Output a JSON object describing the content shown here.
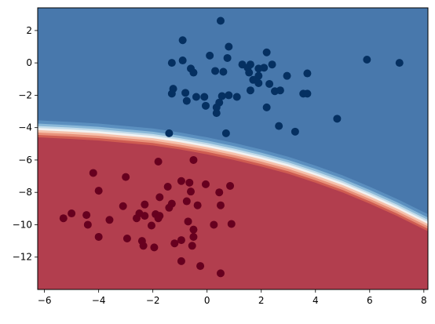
{
  "chart_data": {
    "type": "scatter",
    "title": "",
    "xlabel": "",
    "ylabel": "",
    "xlim": [
      -6.25,
      8.15
    ],
    "ylim": [
      -14.0,
      3.4
    ],
    "grid": false,
    "legend": "none",
    "x_ticks": [
      -6,
      -4,
      -2,
      0,
      2,
      4,
      6,
      8
    ],
    "y_ticks": [
      2,
      0,
      -2,
      -4,
      -6,
      -8,
      -10,
      -12
    ],
    "background_regions": [
      {
        "class": "blue",
        "color": "#4878ac"
      },
      {
        "class": "red",
        "color": "#b23e4e"
      }
    ],
    "boundary_band_colors": [
      "#5b8fbf",
      "#8ab8d8",
      "#c4dcea",
      "#f2f2f2",
      "#f6c2ad",
      "#e8917a",
      "#cf5c52"
    ],
    "boundary_curve": [
      [
        -6.25,
        -4.1
      ],
      [
        -5,
        -4.2
      ],
      [
        -4,
        -4.3
      ],
      [
        -3,
        -4.45
      ],
      [
        -2,
        -4.6
      ],
      [
        -1,
        -4.85
      ],
      [
        0,
        -5.15
      ],
      [
        1,
        -5.5
      ],
      [
        2,
        -5.9
      ],
      [
        3,
        -6.35
      ],
      [
        4,
        -6.9
      ],
      [
        5,
        -7.5
      ],
      [
        6,
        -8.2
      ],
      [
        7,
        -8.95
      ],
      [
        8.15,
        -9.9
      ]
    ],
    "series": [
      {
        "color": "#053061",
        "points": [
          [
            0.5,
            2.6
          ],
          [
            -0.9,
            1.4
          ],
          [
            0.8,
            1.0
          ],
          [
            0.1,
            0.45
          ],
          [
            0.75,
            0.3
          ],
          [
            -0.9,
            0.15
          ],
          [
            -1.3,
            0.0
          ],
          [
            1.3,
            -0.1
          ],
          [
            1.6,
            -0.1
          ],
          [
            2.4,
            -0.1
          ],
          [
            2.2,
            0.65
          ],
          [
            1.5,
            -0.3
          ],
          [
            2.1,
            -0.3
          ],
          [
            1.9,
            -0.35
          ],
          [
            -0.6,
            -0.35
          ],
          [
            0.3,
            -0.5
          ],
          [
            0.6,
            -0.55
          ],
          [
            1.55,
            -0.6
          ],
          [
            1.9,
            -0.8
          ],
          [
            -0.5,
            -0.6
          ],
          [
            2.95,
            -0.8
          ],
          [
            3.7,
            -0.65
          ],
          [
            1.7,
            -1.05
          ],
          [
            1.9,
            -1.25
          ],
          [
            2.3,
            -1.3
          ],
          [
            5.9,
            0.2
          ],
          [
            7.1,
            0.0
          ],
          [
            1.6,
            -1.7
          ],
          [
            2.5,
            -1.75
          ],
          [
            2.7,
            -1.7
          ],
          [
            3.55,
            -1.9
          ],
          [
            3.7,
            -1.9
          ],
          [
            -1.25,
            -1.6
          ],
          [
            -1.3,
            -1.9
          ],
          [
            -0.8,
            -1.85
          ],
          [
            -0.4,
            -2.1
          ],
          [
            -0.1,
            -2.1
          ],
          [
            0.55,
            -2.05
          ],
          [
            0.8,
            -2.0
          ],
          [
            1.1,
            -2.1
          ],
          [
            -0.75,
            -2.35
          ],
          [
            0.45,
            -2.45
          ],
          [
            -0.05,
            -2.65
          ],
          [
            0.35,
            -2.75
          ],
          [
            2.2,
            -2.75
          ],
          [
            0.35,
            -3.1
          ],
          [
            4.8,
            -3.45
          ],
          [
            2.65,
            -3.9
          ],
          [
            3.25,
            -4.25
          ],
          [
            0.7,
            -4.35
          ],
          [
            -1.4,
            -4.35
          ]
        ]
      },
      {
        "color": "#67001f",
        "points": [
          [
            -0.5,
            -6.0
          ],
          [
            -1.8,
            -6.1
          ],
          [
            -4.2,
            -6.8
          ],
          [
            -3.0,
            -7.05
          ],
          [
            -0.95,
            -7.3
          ],
          [
            -0.65,
            -7.4
          ],
          [
            -0.05,
            -7.5
          ],
          [
            0.85,
            -7.6
          ],
          [
            -1.45,
            -7.65
          ],
          [
            -4.0,
            -7.9
          ],
          [
            -0.6,
            -7.95
          ],
          [
            0.45,
            -8.0
          ],
          [
            -1.75,
            -8.3
          ],
          [
            -0.75,
            -8.55
          ],
          [
            -1.3,
            -8.7
          ],
          [
            -0.35,
            -8.8
          ],
          [
            0.5,
            -8.8
          ],
          [
            -2.3,
            -8.75
          ],
          [
            -3.1,
            -8.85
          ],
          [
            -1.4,
            -8.95
          ],
          [
            -2.5,
            -9.3
          ],
          [
            -2.3,
            -9.45
          ],
          [
            -1.9,
            -9.35
          ],
          [
            -5.0,
            -9.3
          ],
          [
            -4.45,
            -9.4
          ],
          [
            -1.75,
            -9.45
          ],
          [
            -2.6,
            -9.6
          ],
          [
            -1.8,
            -9.6
          ],
          [
            -3.6,
            -9.7
          ],
          [
            -5.3,
            -9.6
          ],
          [
            -0.7,
            -9.8
          ],
          [
            -4.4,
            -10.0
          ],
          [
            0.25,
            -10.0
          ],
          [
            0.9,
            -9.95
          ],
          [
            -2.05,
            -10.05
          ],
          [
            -0.5,
            -10.3
          ],
          [
            -4.0,
            -10.75
          ],
          [
            -2.95,
            -10.85
          ],
          [
            -0.5,
            -10.75
          ],
          [
            -0.95,
            -10.95
          ],
          [
            -2.4,
            -11.0
          ],
          [
            -1.2,
            -11.15
          ],
          [
            -2.35,
            -11.3
          ],
          [
            -1.95,
            -11.4
          ],
          [
            -0.55,
            -11.3
          ],
          [
            -0.95,
            -12.25
          ],
          [
            -0.25,
            -12.55
          ],
          [
            0.5,
            -13.0
          ]
        ]
      }
    ]
  }
}
